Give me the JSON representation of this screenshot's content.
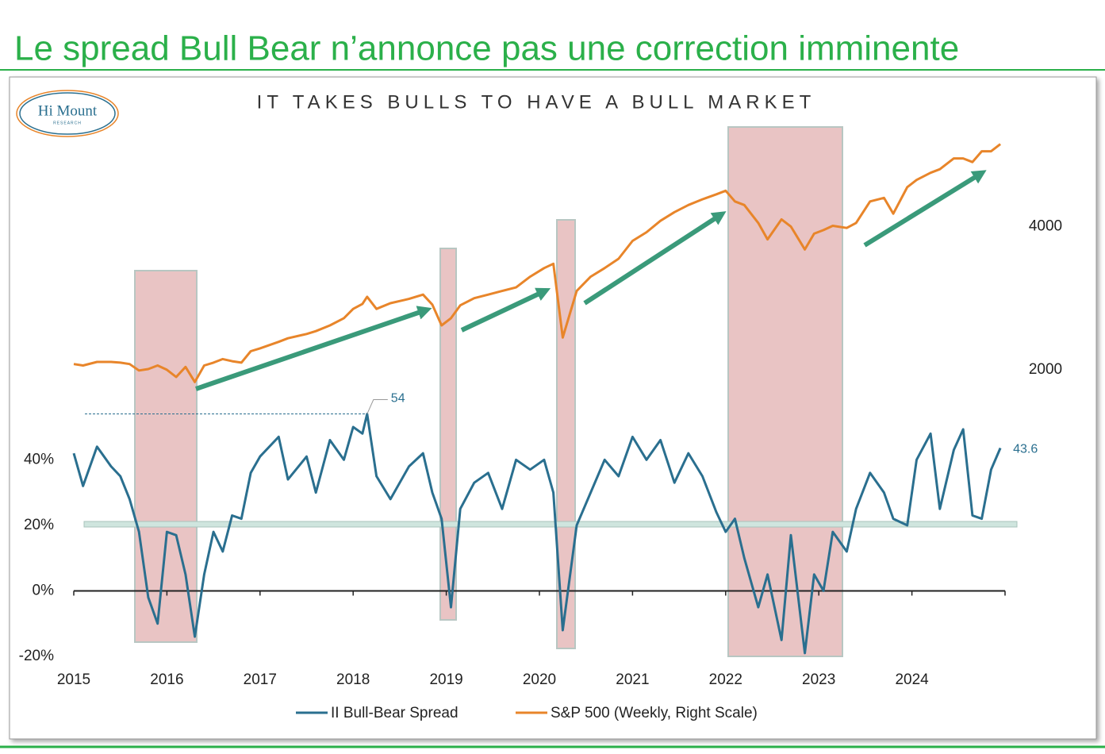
{
  "header": {
    "title": "Le spread Bull Bear n’annonce pas une correction imminente"
  },
  "logo": {
    "name": "Hi Mount",
    "tagline": "RESEARCH"
  },
  "chart_data": {
    "type": "line",
    "title": "IT TAKES BULLS TO HAVE A BULL MARKET",
    "x": [
      2015.0,
      2015.1,
      2015.25,
      2015.4,
      2015.5,
      2015.6,
      2015.7,
      2015.8,
      2015.9,
      2016.0,
      2016.1,
      2016.2,
      2016.3,
      2016.4,
      2016.5,
      2016.6,
      2016.7,
      2016.8,
      2016.9,
      2017.0,
      2017.2,
      2017.3,
      2017.5,
      2017.6,
      2017.75,
      2017.9,
      2018.0,
      2018.1,
      2018.15,
      2018.25,
      2018.4,
      2018.6,
      2018.75,
      2018.85,
      2018.95,
      2019.05,
      2019.15,
      2019.3,
      2019.45,
      2019.6,
      2019.75,
      2019.9,
      2020.05,
      2020.15,
      2020.25,
      2020.4,
      2020.55,
      2020.7,
      2020.85,
      2021.0,
      2021.15,
      2021.3,
      2021.45,
      2021.6,
      2021.75,
      2021.9,
      2022.0,
      2022.1,
      2022.2,
      2022.35,
      2022.45,
      2022.6,
      2022.7,
      2022.85,
      2022.95,
      2023.05,
      2023.15,
      2023.3,
      2023.4,
      2023.55,
      2023.7,
      2023.8,
      2023.95,
      2024.05,
      2024.2,
      2024.3,
      2024.45,
      2024.55,
      2024.65,
      2024.75,
      2024.85,
      2024.95
    ],
    "series": [
      {
        "name": "II Bull-Bear Spread",
        "color": "#2a6f8f",
        "values": [
          42,
          32,
          44,
          38,
          35,
          28,
          18,
          -2,
          -10,
          18,
          17,
          5,
          -14,
          5,
          18,
          12,
          23,
          22,
          36,
          41,
          47,
          34,
          41,
          30,
          46,
          40,
          50,
          48,
          54,
          35,
          28,
          38,
          42,
          30,
          22,
          -5,
          25,
          33,
          36,
          25,
          40,
          37,
          40,
          30,
          -12,
          20,
          30,
          40,
          35,
          47,
          40,
          46,
          33,
          42,
          35,
          24,
          18,
          22,
          10,
          -5,
          5,
          -15,
          17,
          -19,
          5,
          0,
          18,
          12,
          25,
          36,
          30,
          22,
          20,
          40,
          48,
          25,
          43,
          49.3,
          23,
          22,
          37,
          43.6
        ]
      },
      {
        "name": "S&P 500 (Weekly, Right Scale)",
        "color": "#e8852a",
        "axis": "y2",
        "values": [
          2080,
          2060,
          2110,
          2110,
          2100,
          2080,
          1990,
          2010,
          2060,
          2000,
          1900,
          2040,
          1830,
          2060,
          2100,
          2150,
          2120,
          2100,
          2260,
          2300,
          2390,
          2440,
          2500,
          2540,
          2620,
          2720,
          2850,
          2920,
          3020,
          2850,
          2930,
          2990,
          3050,
          2910,
          2620,
          2720,
          2900,
          3000,
          3050,
          3100,
          3150,
          3300,
          3420,
          3480,
          2450,
          3100,
          3300,
          3420,
          3550,
          3800,
          3920,
          4080,
          4200,
          4300,
          4380,
          4450,
          4500,
          4350,
          4300,
          4050,
          3820,
          4100,
          4000,
          3680,
          3900,
          3950,
          4010,
          3980,
          4050,
          4350,
          4400,
          4180,
          4550,
          4650,
          4750,
          4800,
          4950,
          4950,
          4900,
          5050,
          5050,
          5150
        ]
      }
    ],
    "xlim": [
      2015,
      2025
    ],
    "xticks": [
      2015,
      2016,
      2017,
      2018,
      2019,
      2020,
      2021,
      2022,
      2023,
      2024
    ],
    "ylim": [
      -20,
      144
    ],
    "yticks": [
      {
        "value": -20,
        "label": "-20%"
      },
      {
        "value": 0,
        "label": "0%"
      },
      {
        "value": 20,
        "label": "20%"
      },
      {
        "value": 40,
        "label": "40%"
      }
    ],
    "y2lim": [
      -2000,
      5500
    ],
    "y2ticks": [
      2000,
      4000
    ],
    "legend": "bottom"
  }
}
